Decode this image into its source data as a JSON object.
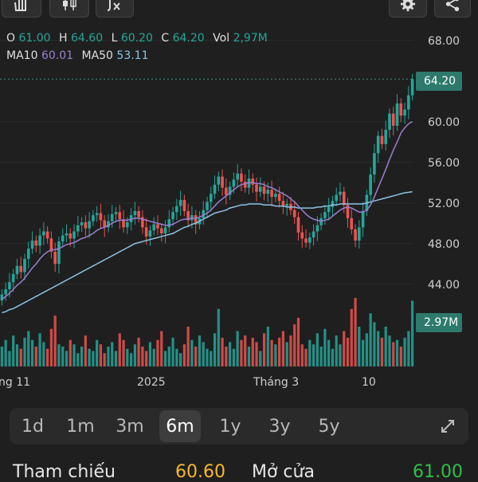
{
  "toolbar": {
    "buttons": [
      {
        "name": "hand-pan-icon"
      },
      {
        "name": "candlestick-icon"
      },
      {
        "name": "indicator-fx-icon"
      },
      {
        "name": "gear-icon"
      },
      {
        "name": "share-icon"
      }
    ]
  },
  "legend": {
    "open_label": "O",
    "open": "61.00",
    "high_label": "H",
    "high": "64.60",
    "low_label": "L",
    "low": "60.20",
    "close_label": "C",
    "close": "64.20",
    "vol_label": "Vol",
    "vol": "2,97M",
    "ma10_label": "MA10",
    "ma10": "60.01",
    "ma50_label": "MA50",
    "ma50": "53.11"
  },
  "price_axis": [
    "68.00",
    "64.20",
    "60.00",
    "56.00",
    "52.00",
    "48.00",
    "44.00"
  ],
  "price_badge": "64.20",
  "volume_badge": "2.97M",
  "time_axis": [
    "ng 11",
    "2025",
    "Tháng 3",
    "10"
  ],
  "timeframe_tabs": [
    {
      "label": "1d"
    },
    {
      "label": "1m"
    },
    {
      "label": "3m"
    },
    {
      "label": "6m",
      "active": true
    },
    {
      "label": "1y"
    },
    {
      "label": "3y"
    },
    {
      "label": "5y"
    }
  ],
  "stats": {
    "ref_label": "Tham chiếu",
    "ref_value": "60.60",
    "open_label": "Mở cửa",
    "open_value": "61.00"
  },
  "colors": {
    "up": "#26a69a",
    "down": "#ef5350",
    "ma10": "#9a7fd1",
    "ma50": "#8cc3e6",
    "ref": "#f5b82e",
    "up_text": "#2fbf4a"
  },
  "chart_data": {
    "type": "candlestick",
    "ylim": [
      41,
      69
    ],
    "closes": [
      43,
      43.5,
      44.2,
      45,
      45.8,
      45.2,
      46.5,
      47.5,
      48.3,
      47.8,
      48.8,
      49.2,
      48.5,
      47.2,
      46,
      48.2,
      48.8,
      49,
      48.5,
      49.2,
      49.8,
      50.1,
      49.5,
      50.2,
      50.8,
      51,
      50.3,
      49.6,
      50.2,
      50.9,
      51.1,
      50.4,
      49.6,
      50.1,
      50.8,
      51.2,
      50.6,
      49.6,
      48.7,
      49.3,
      49.9,
      49.5,
      49,
      49.6,
      50.4,
      51.1,
      51.7,
      52.3,
      51.2,
      50.3,
      50.8,
      49.9,
      50.5,
      51.3,
      52.1,
      52.9,
      53.8,
      54.6,
      53.5,
      52.8,
      53.6,
      54.3,
      54.9,
      54.1,
      53.5,
      54.4,
      53.8,
      53.1,
      53.6,
      52.9,
      53.3,
      52.6,
      52.9,
      52.2,
      51.7,
      51.9,
      51.3,
      50.6,
      49.1,
      48.5,
      48.1,
      48.6,
      49.2,
      49.8,
      50.5,
      51.1,
      51.6,
      52.2,
      52.8,
      53.1,
      51.8,
      50.5,
      49.4,
      48.3,
      49.6,
      51.2,
      52.8,
      54.8,
      56.9,
      58.6,
      57.8,
      59.2,
      60.8,
      59.6,
      61.8,
      60.6,
      61.2,
      62.6,
      64.2
    ],
    "volumes": [
      0.9,
      1.2,
      0.7,
      1.4,
      1.0,
      0.8,
      1.3,
      1.6,
      1.2,
      0.9,
      1.5,
      1.1,
      0.8,
      1.7,
      2.3,
      1.0,
      0.9,
      0.7,
      1.2,
      1.0,
      0.6,
      0.9,
      1.4,
      0.8,
      0.7,
      1.2,
      1.0,
      0.6,
      0.9,
      1.1,
      0.7,
      1.5,
      1.2,
      0.8,
      0.6,
      1.0,
      1.3,
      0.9,
      0.7,
      1.1,
      0.8,
      1.2,
      1.6,
      0.7,
      0.9,
      1.3,
      0.8,
      0.6,
      1.0,
      1.8,
      1.2,
      0.9,
      1.4,
      1.1,
      0.8,
      0.7,
      1.5,
      2.6,
      1.3,
      0.9,
      1.1,
      0.8,
      1.6,
      1.2,
      1.4,
      0.9,
      1.3,
      1.1,
      0.7,
      1.5,
      1.8,
      1.2,
      1.0,
      1.3,
      1.6,
      1.1,
      1.4,
      1.9,
      2.2,
      1.0,
      0.8,
      1.2,
      1.0,
      1.5,
      0.9,
      1.7,
      1.2,
      0.8,
      1.4,
      1.0,
      1.6,
      1.3,
      2.6,
      3.1,
      1.8,
      1.2,
      1.5,
      2.4,
      2.0,
      1.6,
      1.3,
      1.8,
      1.4,
      1.1,
      1.2,
      0.9,
      1.3,
      1.6,
      2.97
    ],
    "volume_max": 3.6,
    "ma10": [
      42.5,
      42.8,
      43.1,
      43.5,
      43.9,
      44.2,
      44.6,
      45.1,
      45.6,
      46.0,
      46.5,
      46.9,
      47.2,
      47.4,
      47.4,
      47.5,
      47.7,
      47.9,
      48.0,
      48.1,
      48.3,
      48.5,
      48.6,
      48.8,
      49.0,
      49.3,
      49.5,
      49.6,
      49.8,
      50.0,
      50.2,
      50.3,
      50.3,
      50.3,
      50.4,
      50.5,
      50.5,
      50.4,
      50.3,
      50.2,
      50.1,
      50.0,
      49.9,
      49.8,
      49.8,
      49.9,
      50.1,
      50.3,
      50.4,
      50.4,
      50.5,
      50.5,
      50.6,
      50.8,
      51.0,
      51.3,
      51.7,
      52.1,
      52.4,
      52.7,
      53.0,
      53.3,
      53.6,
      53.8,
      53.9,
      54.0,
      54.0,
      53.9,
      53.9,
      53.8,
      53.6,
      53.5,
      53.3,
      53.1,
      52.9,
      52.7,
      52.4,
      52.1,
      51.7,
      51.3,
      50.9,
      50.6,
      50.4,
      50.3,
      50.2,
      50.3,
      50.4,
      50.7,
      51.0,
      51.3,
      51.5,
      51.6,
      51.5,
      51.3,
      51.1,
      51.1,
      51.3,
      51.8,
      52.6,
      53.5,
      54.4,
      55.3,
      56.3,
      57.2,
      58.0,
      58.9,
      59.4,
      59.8,
      60.01
    ],
    "ma50": [
      41.2,
      41.3,
      41.5,
      41.6,
      41.8,
      42.0,
      42.2,
      42.4,
      42.6,
      42.8,
      43.0,
      43.2,
      43.4,
      43.6,
      43.8,
      44.0,
      44.2,
      44.4,
      44.6,
      44.8,
      45.0,
      45.2,
      45.4,
      45.6,
      45.8,
      46.0,
      46.2,
      46.4,
      46.6,
      46.8,
      47.0,
      47.2,
      47.4,
      47.6,
      47.8,
      48.0,
      48.1,
      48.2,
      48.3,
      48.4,
      48.5,
      48.6,
      48.7,
      48.8,
      48.9,
      49.0,
      49.2,
      49.4,
      49.6,
      49.7,
      49.9,
      50.0,
      50.2,
      50.4,
      50.6,
      50.8,
      51.0,
      51.1,
      51.2,
      51.3,
      51.5,
      51.6,
      51.7,
      51.8,
      51.8,
      51.9,
      51.9,
      51.9,
      51.9,
      51.8,
      51.8,
      51.8,
      51.7,
      51.7,
      51.7,
      51.6,
      51.6,
      51.6,
      51.5,
      51.5,
      51.5,
      51.5,
      51.5,
      51.6,
      51.6,
      51.7,
      51.7,
      51.8,
      51.8,
      51.9,
      51.9,
      51.9,
      51.9,
      51.9,
      51.9,
      51.9,
      52.0,
      52.1,
      52.2,
      52.3,
      52.4,
      52.5,
      52.6,
      52.7,
      52.8,
      52.9,
      53.0,
      53.05,
      53.11
    ]
  }
}
